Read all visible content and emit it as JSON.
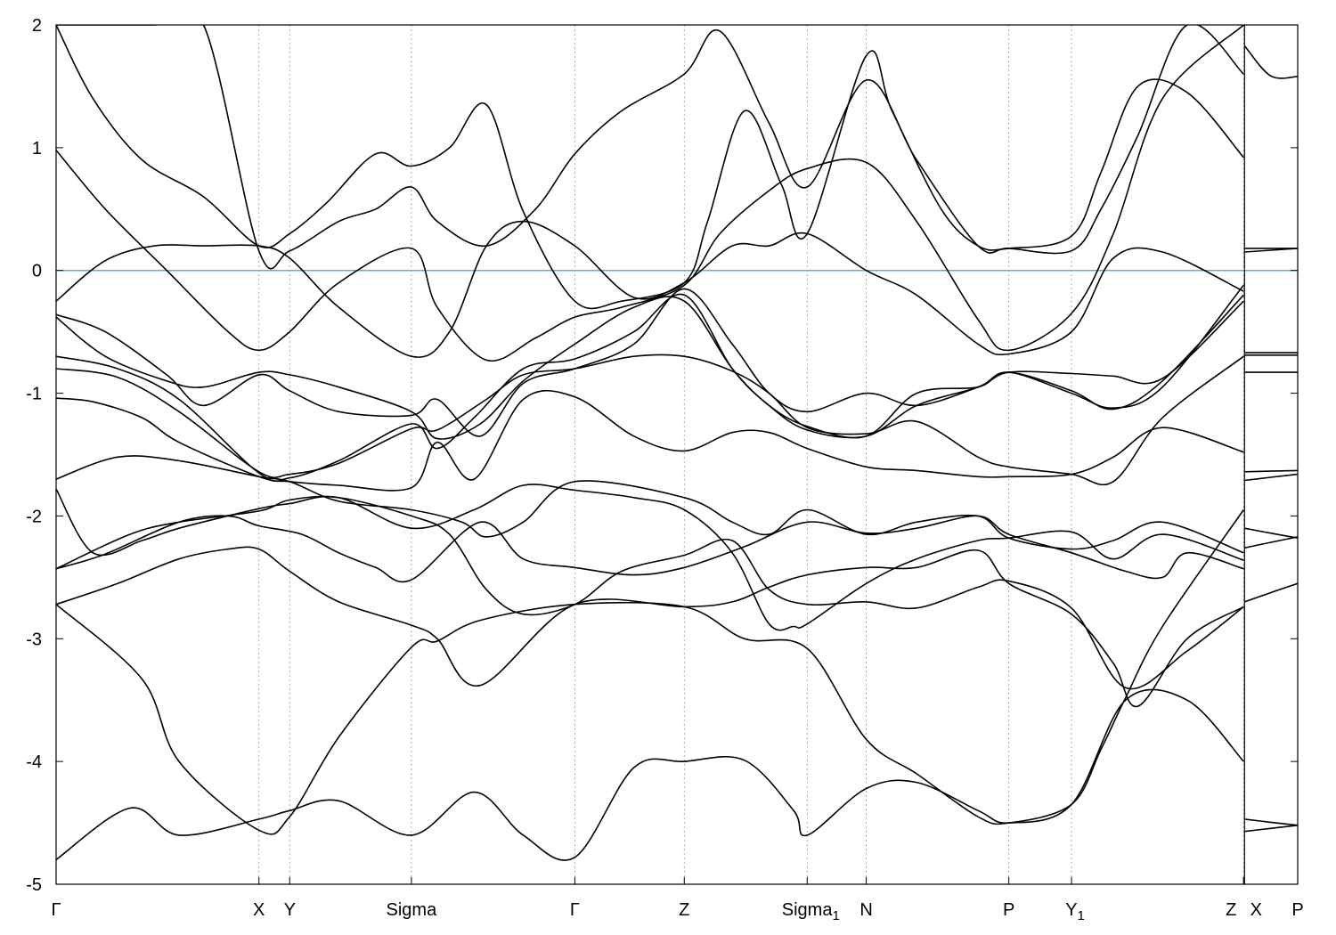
{
  "chart_data": {
    "type": "line",
    "title": "",
    "xlabel": "",
    "ylabel": "",
    "ylim": [
      -5,
      2
    ],
    "xlim": [
      0,
      10.1
    ],
    "grid": "vertical dashed lines at high-symmetry points",
    "yticks": [
      {
        "value": 2,
        "label": "2"
      },
      {
        "value": 1,
        "label": "1"
      },
      {
        "value": 0,
        "label": "0"
      },
      {
        "value": -1,
        "label": "-1"
      },
      {
        "value": -2,
        "label": "-2"
      },
      {
        "value": -3,
        "label": "-3"
      },
      {
        "value": -4,
        "label": "-4"
      },
      {
        "value": -5,
        "label": "-5"
      }
    ],
    "kpoints": [
      {
        "x": 0.0,
        "label": "Γ",
        "sub": ""
      },
      {
        "x": 1.65,
        "label": "X",
        "sub": ""
      },
      {
        "x": 1.9,
        "label": "Y",
        "sub": ""
      },
      {
        "x": 2.89,
        "label": "Sigma",
        "sub": ""
      },
      {
        "x": 4.22,
        "label": "Γ",
        "sub": ""
      },
      {
        "x": 5.11,
        "label": "Z",
        "sub": ""
      },
      {
        "x": 6.11,
        "label": "Sigma",
        "sub": "1"
      },
      {
        "x": 6.59,
        "label": "N",
        "sub": ""
      },
      {
        "x": 7.75,
        "label": "P",
        "sub": ""
      },
      {
        "x": 8.26,
        "label": "Y",
        "sub": "1"
      },
      {
        "x": 9.66,
        "label": "Z",
        "sub": ""
      },
      {
        "x": 9.66,
        "label": "X",
        "sub": ""
      },
      {
        "x": 10.1,
        "label": "P",
        "sub": ""
      }
    ],
    "fermi_level": 0,
    "colors": {
      "bands": "#000000",
      "fermi": "#5ab4c8",
      "grid": "#999999"
    },
    "series": [
      {
        "x": [
          0,
          0.6,
          1.0,
          1.65,
          1.9,
          2.3,
          2.89,
          3.4,
          3.8,
          4.22,
          4.7,
          5.11,
          5.6,
          6.0,
          6.11,
          6.59,
          7.0,
          7.5,
          7.75,
          8.26,
          8.7,
          9.2,
          9.66
        ],
        "y": [
          -4.8,
          -4.38,
          -4.6,
          -4.47,
          -4.4,
          -4.32,
          -4.6,
          -4.25,
          -4.6,
          -4.78,
          -4.05,
          -4.0,
          -3.99,
          -4.4,
          -4.6,
          -4.22,
          -4.17,
          -4.4,
          -4.5,
          -4.35,
          -3.5,
          -3.5,
          -4.0
        ]
      },
      {
        "x": [
          0,
          0.7,
          1.0,
          1.65,
          1.9,
          2.3,
          2.89,
          3.1,
          3.45,
          4.22,
          5.11,
          5.6,
          6.11,
          6.59,
          7.0,
          7.5,
          7.75,
          8.26,
          8.5,
          8.7,
          9.0,
          9.66
        ],
        "y": [
          -2.72,
          -3.33,
          -4.0,
          -4.56,
          -4.45,
          -3.8,
          -3.07,
          -3.02,
          -2.85,
          -2.72,
          -2.74,
          -3.0,
          -3.08,
          -3.82,
          -4.1,
          -4.45,
          -4.5,
          -4.35,
          -3.9,
          -3.48,
          -2.9,
          -1.95
        ]
      },
      {
        "x": [
          0,
          0.5,
          1.0,
          1.4,
          1.65,
          1.9,
          2.3,
          2.89,
          3.1,
          3.45,
          4.22,
          5.11,
          5.5,
          5.8,
          6.11,
          6.59,
          7.0,
          7.5,
          7.75,
          8.26,
          8.6,
          8.8,
          9.2,
          9.66
        ],
        "y": [
          -2.72,
          -2.55,
          -2.35,
          -2.27,
          -2.27,
          -2.45,
          -2.7,
          -2.89,
          -3.0,
          -3.38,
          -2.72,
          -2.74,
          -2.7,
          -2.58,
          -2.48,
          -2.42,
          -2.42,
          -2.28,
          -2.55,
          -2.8,
          -3.2,
          -3.55,
          -3.0,
          -2.74
        ]
      },
      {
        "x": [
          0,
          0.4,
          1.0,
          1.4,
          1.65,
          2.0,
          2.3,
          2.6,
          2.89,
          3.45,
          3.8,
          4.22,
          4.7,
          5.11,
          5.6,
          6.11,
          6.59,
          7.0,
          7.5,
          7.75,
          8.26,
          8.7,
          9.0,
          9.2,
          9.66
        ],
        "y": [
          -2.43,
          -2.31,
          -2.05,
          -2.0,
          -2.08,
          -2.15,
          -2.3,
          -2.42,
          -2.52,
          -2.05,
          -2.35,
          -2.42,
          -2.48,
          -2.42,
          -2.25,
          -2.05,
          -2.14,
          -2.1,
          -2.0,
          -2.15,
          -2.3,
          -2.45,
          -2.5,
          -2.3,
          -2.43
        ]
      },
      {
        "x": [
          0,
          0.6,
          1.0,
          1.65,
          1.9,
          2.3,
          2.89,
          3.2,
          3.5,
          3.8,
          4.22,
          4.6,
          5.11,
          5.5,
          5.8,
          6.11,
          6.59,
          7.0,
          7.5,
          7.75,
          8.26,
          8.7,
          9.2,
          9.66
        ],
        "y": [
          -2.43,
          -2.15,
          -2.05,
          -1.96,
          -1.87,
          -1.85,
          -2.0,
          -2.15,
          -2.6,
          -2.8,
          -2.72,
          -2.45,
          -2.32,
          -2.2,
          -2.6,
          -2.72,
          -2.7,
          -2.75,
          -2.58,
          -2.53,
          -2.75,
          -3.4,
          -3.1,
          -2.74
        ]
      },
      {
        "x": [
          0,
          0.3,
          0.7,
          1.0,
          1.65,
          1.9,
          2.3,
          2.89,
          3.4,
          3.8,
          4.22,
          4.7,
          5.11,
          5.5,
          5.8,
          6.0,
          6.11,
          6.59,
          7.0,
          7.5,
          7.75,
          8.26,
          8.6,
          9.0,
          9.66
        ],
        "y": [
          -1.78,
          -2.3,
          -2.2,
          -2.1,
          -1.94,
          -1.9,
          -1.85,
          -2.1,
          -1.95,
          -1.75,
          -1.79,
          -1.85,
          -1.95,
          -2.3,
          -2.88,
          -2.9,
          -2.88,
          -2.55,
          -2.35,
          -2.2,
          -2.18,
          -2.13,
          -2.35,
          -2.15,
          -2.36
        ]
      },
      {
        "x": [
          0,
          0.5,
          1.0,
          1.65,
          1.9,
          2.3,
          2.89,
          3.3,
          3.5,
          3.8,
          4.22,
          5.11,
          5.5,
          5.8,
          6.11,
          6.59,
          7.0,
          7.5,
          7.75,
          8.26,
          8.6,
          9.0,
          9.66
        ],
        "y": [
          -1.7,
          -1.52,
          -1.55,
          -1.68,
          -1.72,
          -1.88,
          -1.95,
          -2.05,
          -2.17,
          -2.05,
          -1.72,
          -1.85,
          -2.05,
          -2.15,
          -1.95,
          -2.15,
          -2.05,
          -2.0,
          -2.18,
          -2.27,
          -2.2,
          -2.05,
          -2.3
        ]
      },
      {
        "x": [
          0,
          0.3,
          0.7,
          1.0,
          1.65,
          1.9,
          2.3,
          2.89,
          3.1,
          3.4,
          3.8,
          4.22,
          4.7,
          5.11,
          5.5,
          5.8,
          6.11,
          6.59,
          7.0,
          7.5,
          7.75,
          8.26,
          8.6,
          9.0,
          9.66
        ],
        "y": [
          -1.04,
          -1.07,
          -1.2,
          -1.4,
          -1.68,
          -1.72,
          -1.75,
          -1.77,
          -1.4,
          -1.7,
          -1.05,
          -1.03,
          -1.35,
          -1.47,
          -1.32,
          -1.32,
          -1.45,
          -1.6,
          -1.63,
          -1.68,
          -1.68,
          -1.66,
          -1.52,
          -1.28,
          -1.48
        ]
      },
      {
        "x": [
          0,
          0.5,
          1.0,
          1.65,
          1.9,
          2.3,
          2.89,
          3.1,
          3.5,
          3.8,
          4.22,
          4.7,
          5.11,
          5.5,
          5.8,
          6.11,
          6.59,
          7.0,
          7.5,
          7.75,
          8.26,
          8.6,
          9.0,
          9.66
        ],
        "y": [
          -0.8,
          -0.87,
          -1.15,
          -1.64,
          -1.66,
          -1.57,
          -1.29,
          -1.3,
          -1.05,
          -0.85,
          -0.8,
          -0.7,
          -0.7,
          -0.82,
          -1.0,
          -1.28,
          -1.33,
          -1.23,
          -1.52,
          -1.6,
          -1.66,
          -1.72,
          -1.2,
          -0.7
        ]
      },
      {
        "x": [
          0,
          0.5,
          1.0,
          1.65,
          1.9,
          2.3,
          2.89,
          3.1,
          3.4,
          3.8,
          4.22,
          4.7,
          5.11,
          5.5,
          5.8,
          6.11,
          6.59,
          7.0,
          7.5,
          7.75,
          8.26,
          8.6,
          9.0,
          9.66
        ],
        "y": [
          -0.7,
          -0.8,
          -1.05,
          -1.65,
          -1.69,
          -1.55,
          -1.25,
          -1.45,
          -1.2,
          -0.8,
          -0.72,
          -0.5,
          -0.2,
          -0.8,
          -1.1,
          -1.3,
          -1.35,
          -1.1,
          -0.95,
          -0.83,
          -0.84,
          -0.86,
          -0.88,
          -0.25
        ]
      },
      {
        "x": [
          0,
          0.4,
          0.9,
          1.2,
          1.65,
          1.9,
          2.3,
          2.89,
          3.1,
          3.45,
          3.8,
          4.22,
          4.7,
          5.11,
          5.5,
          5.8,
          6.11,
          6.59,
          7.0,
          7.5,
          7.75,
          8.26,
          8.6,
          9.0,
          9.66
        ],
        "y": [
          -0.38,
          -0.7,
          -0.9,
          -0.95,
          -0.83,
          -0.85,
          -0.95,
          -1.15,
          -1.37,
          -1.25,
          -0.9,
          -0.6,
          -0.3,
          -0.25,
          -0.8,
          -1.1,
          -1.27,
          -1.35,
          -1.0,
          -0.95,
          -0.83,
          -0.98,
          -1.13,
          -0.9,
          -0.2
        ]
      },
      {
        "x": [
          0,
          0.4,
          0.9,
          1.2,
          1.65,
          1.9,
          2.3,
          2.89,
          3.1,
          3.45,
          3.8,
          4.22,
          4.7,
          5.11,
          5.5,
          5.8,
          6.11,
          6.59,
          7.0,
          7.5,
          7.75,
          8.26,
          8.6,
          9.0,
          9.66
        ],
        "y": [
          -0.36,
          -0.5,
          -0.85,
          -1.1,
          -0.85,
          -0.98,
          -1.15,
          -1.18,
          -1.05,
          -1.35,
          -0.92,
          -0.8,
          -0.6,
          -0.15,
          -0.6,
          -1.0,
          -1.15,
          -1.0,
          -1.1,
          -0.95,
          -0.83,
          -1.0,
          -1.12,
          -0.95,
          -0.12
        ]
      },
      {
        "x": [
          0,
          0.4,
          0.8,
          1.2,
          1.65,
          1.9,
          2.3,
          2.89,
          3.2,
          3.5,
          3.8,
          4.22,
          4.7,
          5.11,
          5.5,
          5.8,
          6.11,
          6.59,
          7.0,
          7.5,
          7.75,
          8.26,
          8.6,
          9.0,
          9.66
        ],
        "y": [
          -0.25,
          0.08,
          0.2,
          0.2,
          0.2,
          0.1,
          -0.3,
          -0.7,
          -0.5,
          0.2,
          0.4,
          0.2,
          -0.22,
          -0.1,
          0.2,
          0.2,
          0.3,
          0.0,
          -0.2,
          -0.6,
          -0.68,
          -0.5,
          0.1,
          0.15,
          -0.17
        ]
      },
      {
        "x": [
          0,
          0.4,
          0.9,
          1.4,
          1.65,
          1.9,
          2.3,
          2.89,
          3.1,
          3.5,
          3.9,
          4.22,
          4.6,
          5.11,
          5.4,
          5.8,
          6.11,
          6.59,
          7.0,
          7.5,
          7.75,
          8.26,
          8.6,
          9.0,
          9.66
        ],
        "y": [
          0.98,
          0.5,
          0.0,
          -0.5,
          -0.65,
          -0.5,
          -0.1,
          0.18,
          -0.3,
          -0.73,
          -0.55,
          -0.38,
          -0.3,
          -0.12,
          0.3,
          0.65,
          0.83,
          0.88,
          0.4,
          -0.4,
          -0.65,
          -0.35,
          0.3,
          1.4,
          2.0
        ]
      },
      {
        "x": [
          0,
          0.3,
          0.7,
          1.2,
          1.65,
          1.9,
          2.2,
          2.6,
          2.89,
          3.2,
          3.5,
          3.8,
          4.22,
          4.6,
          5.11,
          5.3,
          5.6,
          5.9,
          6.11,
          6.59,
          6.8,
          7.2,
          7.5,
          7.75,
          8.26,
          8.5,
          8.8,
          9.2,
          9.66
        ],
        "y": [
          2.0,
          1.4,
          0.9,
          0.6,
          0.2,
          0.3,
          0.55,
          0.95,
          0.85,
          1.0,
          1.35,
          0.48,
          -0.25,
          -0.25,
          -0.1,
          0.4,
          1.3,
          0.7,
          0.3,
          1.75,
          1.3,
          0.5,
          0.2,
          0.18,
          0.28,
          0.8,
          1.5,
          1.45,
          0.92
        ]
      },
      {
        "x": [
          0,
          0.4,
          0.8,
          1.2,
          1.65,
          1.9,
          2.3,
          2.6,
          2.89,
          3.1,
          3.5,
          3.9,
          4.22,
          4.6,
          5.11,
          5.4,
          5.8,
          6.11,
          6.59,
          7.0,
          7.5,
          7.75,
          8.26,
          8.5,
          8.8,
          9.2,
          9.66
        ],
        "y": [
          2.0,
          2.0,
          2.0,
          2.0,
          0.16,
          0.16,
          0.4,
          0.5,
          0.68,
          0.4,
          0.2,
          0.5,
          0.95,
          1.3,
          1.6,
          1.95,
          1.2,
          0.68,
          1.55,
          0.9,
          0.2,
          0.18,
          0.16,
          0.5,
          1.1,
          2.0,
          1.6
        ]
      }
    ]
  }
}
